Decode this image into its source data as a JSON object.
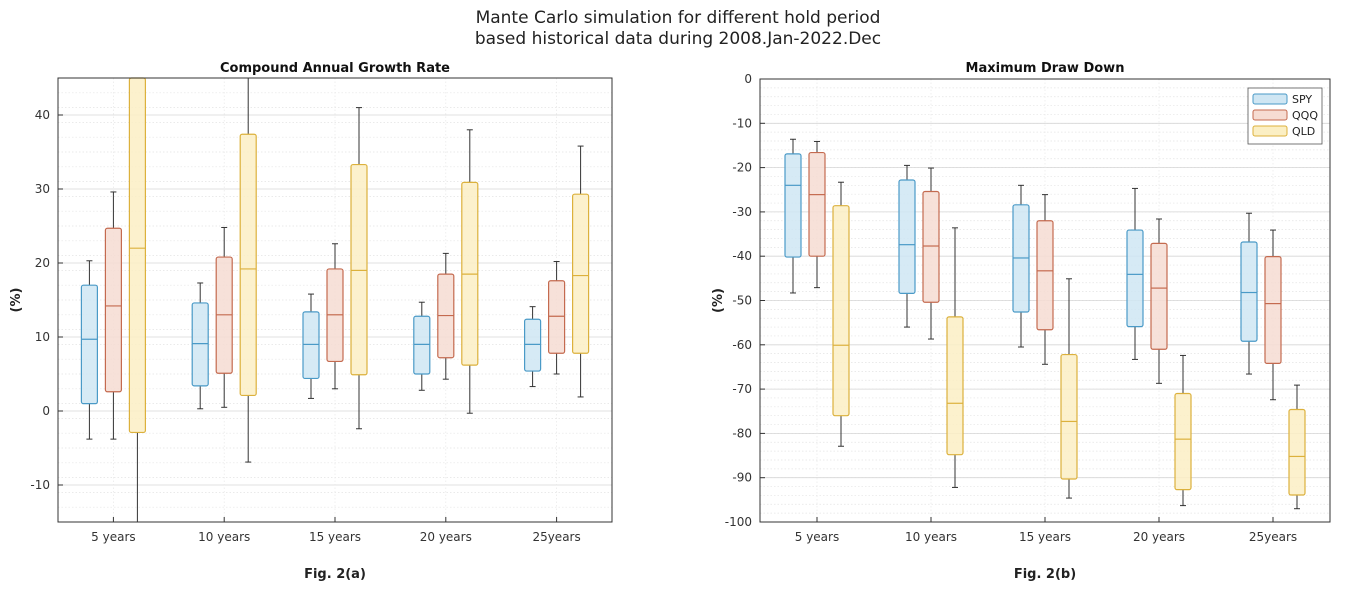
{
  "suptitle": {
    "line1": "Mante Carlo simulation for different hold period",
    "line2": "based historical data during 2008.Jan-2022.Dec"
  },
  "colors": {
    "SPY": {
      "fill": "#cfe6f3",
      "stroke": "#4a9ac7"
    },
    "QQQ": {
      "fill": "#f6dcd2",
      "stroke": "#c46a4f"
    },
    "QLD": {
      "fill": "#fbefc4",
      "stroke": "#dcb13c"
    },
    "grid": "#d6d6d6",
    "axis": "#333333"
  },
  "chart_data": [
    {
      "type": "box",
      "title": "Compound Annual Growth Rate",
      "ylabel": "(%)",
      "caption": "Fig. 2(a)",
      "categories": [
        "5 years",
        "10 years",
        "15 years",
        "20 years",
        "25years"
      ],
      "ylim": [
        -15,
        45
      ],
      "yticks": [
        -10,
        0,
        10,
        20,
        30,
        40
      ],
      "grid": true,
      "legend": false,
      "series": [
        {
          "name": "SPY",
          "boxes": [
            {
              "whislo": -3.8,
              "q1": 1.0,
              "med": 9.7,
              "q3": 17.0,
              "whishi": 20.3
            },
            {
              "whislo": 0.3,
              "q1": 3.4,
              "med": 9.1,
              "q3": 14.6,
              "whishi": 17.3
            },
            {
              "whislo": 1.7,
              "q1": 4.4,
              "med": 9.0,
              "q3": 13.4,
              "whishi": 15.8
            },
            {
              "whislo": 2.8,
              "q1": 5.0,
              "med": 9.0,
              "q3": 12.8,
              "whishi": 14.7
            },
            {
              "whislo": 3.3,
              "q1": 5.4,
              "med": 9.0,
              "q3": 12.4,
              "whishi": 14.1
            }
          ]
        },
        {
          "name": "QQQ",
          "boxes": [
            {
              "whislo": -3.8,
              "q1": 2.6,
              "med": 14.2,
              "q3": 24.7,
              "whishi": 29.6
            },
            {
              "whislo": 0.5,
              "q1": 5.1,
              "med": 13.0,
              "q3": 20.8,
              "whishi": 24.8
            },
            {
              "whislo": 3.0,
              "q1": 6.7,
              "med": 13.0,
              "q3": 19.2,
              "whishi": 22.6
            },
            {
              "whislo": 4.3,
              "q1": 7.2,
              "med": 12.9,
              "q3": 18.5,
              "whishi": 21.3
            },
            {
              "whislo": 5.0,
              "q1": 7.8,
              "med": 12.8,
              "q3": 17.6,
              "whishi": 20.2
            }
          ]
        },
        {
          "name": "QLD",
          "boxes": [
            {
              "whislo": -15.0,
              "q1": -2.9,
              "med": 22.0,
              "q3": 45.0,
              "whishi": 45.0
            },
            {
              "whislo": -6.9,
              "q1": 2.1,
              "med": 19.2,
              "q3": 37.4,
              "whishi": 45.0
            },
            {
              "whislo": -2.4,
              "q1": 4.9,
              "med": 19.0,
              "q3": 33.3,
              "whishi": 41.0
            },
            {
              "whislo": -0.3,
              "q1": 6.2,
              "med": 18.5,
              "q3": 30.9,
              "whishi": 38.0
            },
            {
              "whislo": 1.9,
              "q1": 7.8,
              "med": 18.3,
              "q3": 29.3,
              "whishi": 35.8
            }
          ]
        }
      ]
    },
    {
      "type": "box",
      "title": "Maximum Draw Down",
      "ylabel": "(%)",
      "caption": "Fig. 2(b)",
      "categories": [
        "5 years",
        "10 years",
        "15 years",
        "20 years",
        "25years"
      ],
      "ylim": [
        -100,
        0
      ],
      "yticks": [
        -100,
        -90,
        -80,
        -70,
        -60,
        -50,
        -40,
        -30,
        -20,
        -10,
        0
      ],
      "grid": true,
      "legend": true,
      "legend_position": "top-right",
      "series": [
        {
          "name": "SPY",
          "boxes": [
            {
              "whislo": -48.3,
              "q1": -40.2,
              "med": -24.0,
              "q3": -16.9,
              "whishi": -13.6
            },
            {
              "whislo": -56.0,
              "q1": -48.4,
              "med": -37.4,
              "q3": -22.8,
              "whishi": -19.5
            },
            {
              "whislo": -60.5,
              "q1": -52.6,
              "med": -40.4,
              "q3": -28.4,
              "whishi": -24.0
            },
            {
              "whislo": -63.3,
              "q1": -55.9,
              "med": -44.1,
              "q3": -34.1,
              "whishi": -24.7
            },
            {
              "whislo": -66.6,
              "q1": -59.2,
              "med": -48.2,
              "q3": -36.8,
              "whishi": -30.3
            }
          ]
        },
        {
          "name": "QQQ",
          "boxes": [
            {
              "whislo": -47.1,
              "q1": -40.0,
              "med": -26.1,
              "q3": -16.6,
              "whishi": -14.1
            },
            {
              "whislo": -58.7,
              "q1": -50.4,
              "med": -37.7,
              "q3": -25.4,
              "whishi": -20.1
            },
            {
              "whislo": -64.4,
              "q1": -56.6,
              "med": -43.3,
              "q3": -32.0,
              "whishi": -26.1
            },
            {
              "whislo": -68.7,
              "q1": -61.0,
              "med": -47.2,
              "q3": -37.1,
              "whishi": -31.6
            },
            {
              "whislo": -72.4,
              "q1": -64.2,
              "med": -50.7,
              "q3": -40.1,
              "whishi": -34.1
            }
          ]
        },
        {
          "name": "QLD",
          "boxes": [
            {
              "whislo": -82.9,
              "q1": -76.0,
              "med": -60.1,
              "q3": -28.6,
              "whishi": -23.3
            },
            {
              "whislo": -92.2,
              "q1": -84.8,
              "med": -73.2,
              "q3": -53.7,
              "whishi": -33.6
            },
            {
              "whislo": -94.6,
              "q1": -90.3,
              "med": -77.3,
              "q3": -62.2,
              "whishi": -45.1
            },
            {
              "whislo": -96.3,
              "q1": -92.7,
              "med": -81.3,
              "q3": -71.0,
              "whishi": -62.4
            },
            {
              "whislo": -97.0,
              "q1": -93.9,
              "med": -85.2,
              "q3": -74.6,
              "whishi": -69.1
            }
          ]
        }
      ]
    }
  ]
}
